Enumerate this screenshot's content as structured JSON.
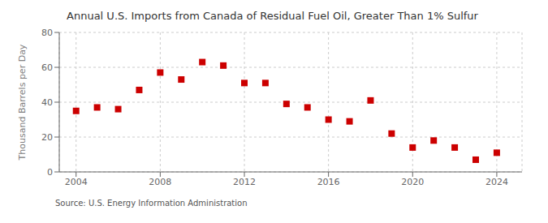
{
  "chart_data": {
    "type": "scatter",
    "title": "Annual U.S. Imports from Canada of Residual Fuel Oil, Greater Than 1% Sulfur",
    "ylabel": "Thousand Barrels per Day",
    "annotations": [
      "Source: U.S. Energy Information Administration"
    ],
    "x": [
      2004,
      2005,
      2006,
      2007,
      2008,
      2009,
      2010,
      2011,
      2012,
      2013,
      2014,
      2015,
      2016,
      2017,
      2018,
      2019,
      2020,
      2021,
      2022,
      2023,
      2024
    ],
    "values": [
      35,
      37,
      36,
      47,
      57,
      53,
      63,
      61,
      51,
      51,
      39,
      37,
      30,
      29,
      41,
      22,
      14,
      18,
      14,
      7,
      11
    ],
    "color": "#cc0000",
    "marker": "square",
    "xlim": [
      2003.2,
      2025.2
    ],
    "xticks": [
      2004,
      2008,
      2012,
      2016,
      2020,
      2024
    ],
    "ylim": [
      0,
      80
    ],
    "yticks": [
      0,
      20,
      40,
      60,
      80
    ],
    "grid": true
  }
}
